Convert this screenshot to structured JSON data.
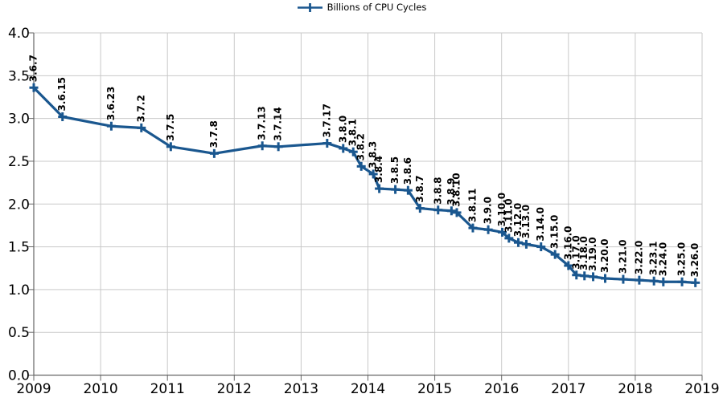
{
  "legend": {
    "label": "Billions of CPU Cycles"
  },
  "chart_data": {
    "type": "line",
    "title": "",
    "xlabel": "",
    "ylabel": "",
    "grid": true,
    "legend_position": "top-center",
    "xlim": [
      2009,
      2019
    ],
    "ylim": [
      0.0,
      4.0
    ],
    "x_ticks": [
      2009,
      2010,
      2011,
      2012,
      2013,
      2014,
      2015,
      2016,
      2017,
      2018,
      2019
    ],
    "y_ticks": [
      0.0,
      0.5,
      1.0,
      1.5,
      2.0,
      2.5,
      3.0,
      3.5,
      4.0
    ],
    "y_tick_labels": [
      "0.0",
      "0.5",
      "1.0",
      "1.5",
      "2.0",
      "2.5",
      "3.0",
      "3.5",
      "4.0"
    ],
    "colors": {
      "series": "#1a578f",
      "grid": "#c9c9c9",
      "axis": "#666666",
      "text": "#000000",
      "background": "#ffffff"
    },
    "series": [
      {
        "name": "Billions of CPU Cycles",
        "marker": "plus",
        "points": [
          {
            "label": "3.6.7",
            "x": 2009.0,
            "y": 3.36
          },
          {
            "label": "3.6.15",
            "x": 2009.43,
            "y": 3.02
          },
          {
            "label": "3.6.23",
            "x": 2010.16,
            "y": 2.91
          },
          {
            "label": "3.7.2",
            "x": 2010.61,
            "y": 2.89
          },
          {
            "label": "3.7.5",
            "x": 2011.05,
            "y": 2.67
          },
          {
            "label": "3.7.8",
            "x": 2011.7,
            "y": 2.59
          },
          {
            "label": "3.7.13",
            "x": 2012.42,
            "y": 2.68
          },
          {
            "label": "3.7.14",
            "x": 2012.66,
            "y": 2.67
          },
          {
            "label": "3.7.17",
            "x": 2013.39,
            "y": 2.71
          },
          {
            "label": "3.8.0",
            "x": 2013.63,
            "y": 2.65
          },
          {
            "label": "3.8.1",
            "x": 2013.78,
            "y": 2.61
          },
          {
            "label": "3.8.2",
            "x": 2013.9,
            "y": 2.44
          },
          {
            "label": "3.8.3",
            "x": 2014.08,
            "y": 2.35
          },
          {
            "label": "3.8.4",
            "x": 2014.17,
            "y": 2.18
          },
          {
            "label": "3.8.5",
            "x": 2014.41,
            "y": 2.17
          },
          {
            "label": "3.8.6",
            "x": 2014.6,
            "y": 2.16
          },
          {
            "label": "3.8.7",
            "x": 2014.78,
            "y": 1.95
          },
          {
            "label": "3.8.8",
            "x": 2015.05,
            "y": 1.93
          },
          {
            "label": "3.8.9",
            "x": 2015.25,
            "y": 1.92
          },
          {
            "label": "3.8.10",
            "x": 2015.33,
            "y": 1.9
          },
          {
            "label": "3.8.11",
            "x": 2015.57,
            "y": 1.72
          },
          {
            "label": "3.9.0",
            "x": 2015.8,
            "y": 1.7
          },
          {
            "label": "3.10.0",
            "x": 2016.01,
            "y": 1.67
          },
          {
            "label": "3.11.0",
            "x": 2016.11,
            "y": 1.6
          },
          {
            "label": "3.12.0",
            "x": 2016.25,
            "y": 1.55
          },
          {
            "label": "3.13.0",
            "x": 2016.37,
            "y": 1.53
          },
          {
            "label": "3.14.0",
            "x": 2016.59,
            "y": 1.5
          },
          {
            "label": "3.15.0",
            "x": 2016.8,
            "y": 1.41
          },
          {
            "label": "3.16.0",
            "x": 2017.0,
            "y": 1.28
          },
          {
            "label": "3.17.0",
            "x": 2017.12,
            "y": 1.17
          },
          {
            "label": "3.18.0",
            "x": 2017.24,
            "y": 1.16
          },
          {
            "label": "3.19.0",
            "x": 2017.37,
            "y": 1.15
          },
          {
            "label": "3.20.0",
            "x": 2017.55,
            "y": 1.13
          },
          {
            "label": "3.21.0",
            "x": 2017.82,
            "y": 1.12
          },
          {
            "label": "3.22.0",
            "x": 2018.06,
            "y": 1.11
          },
          {
            "label": "3.23.1",
            "x": 2018.28,
            "y": 1.1
          },
          {
            "label": "3.24.0",
            "x": 2018.42,
            "y": 1.09
          },
          {
            "label": "3.25.0",
            "x": 2018.7,
            "y": 1.09
          },
          {
            "label": "3.26.0",
            "x": 2018.9,
            "y": 1.08
          }
        ]
      }
    ]
  }
}
